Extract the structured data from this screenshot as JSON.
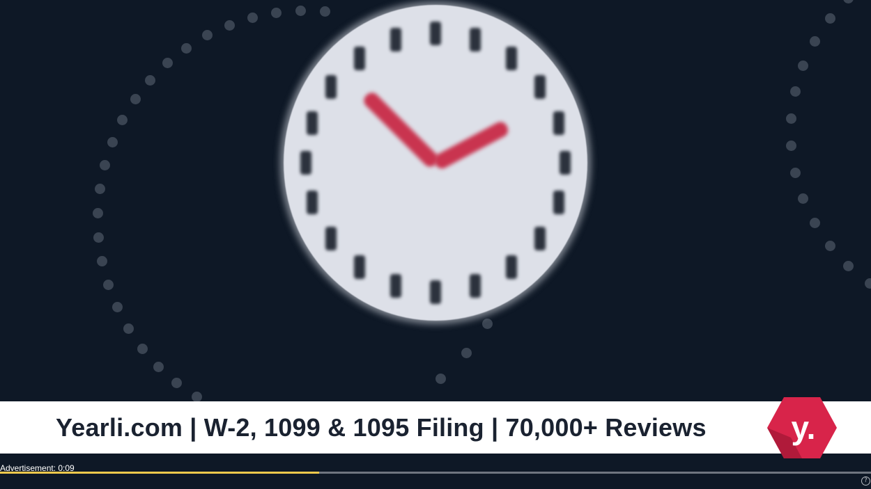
{
  "banner": {
    "text": "Yearli.com  |  W-2, 1099 & 1095 Filing  |  70,000+ Reviews"
  },
  "logo": {
    "letter": "y."
  },
  "ad": {
    "label": "Advertisement: 0:09",
    "progress_fraction": 0.366
  },
  "help": {
    "glyph": "?"
  },
  "colors": {
    "background": "#0e1826",
    "clock_face": "#dde0e8",
    "clock_hands": "#c9344f",
    "brand": "#d8244a",
    "progress": "#f2c94c"
  }
}
